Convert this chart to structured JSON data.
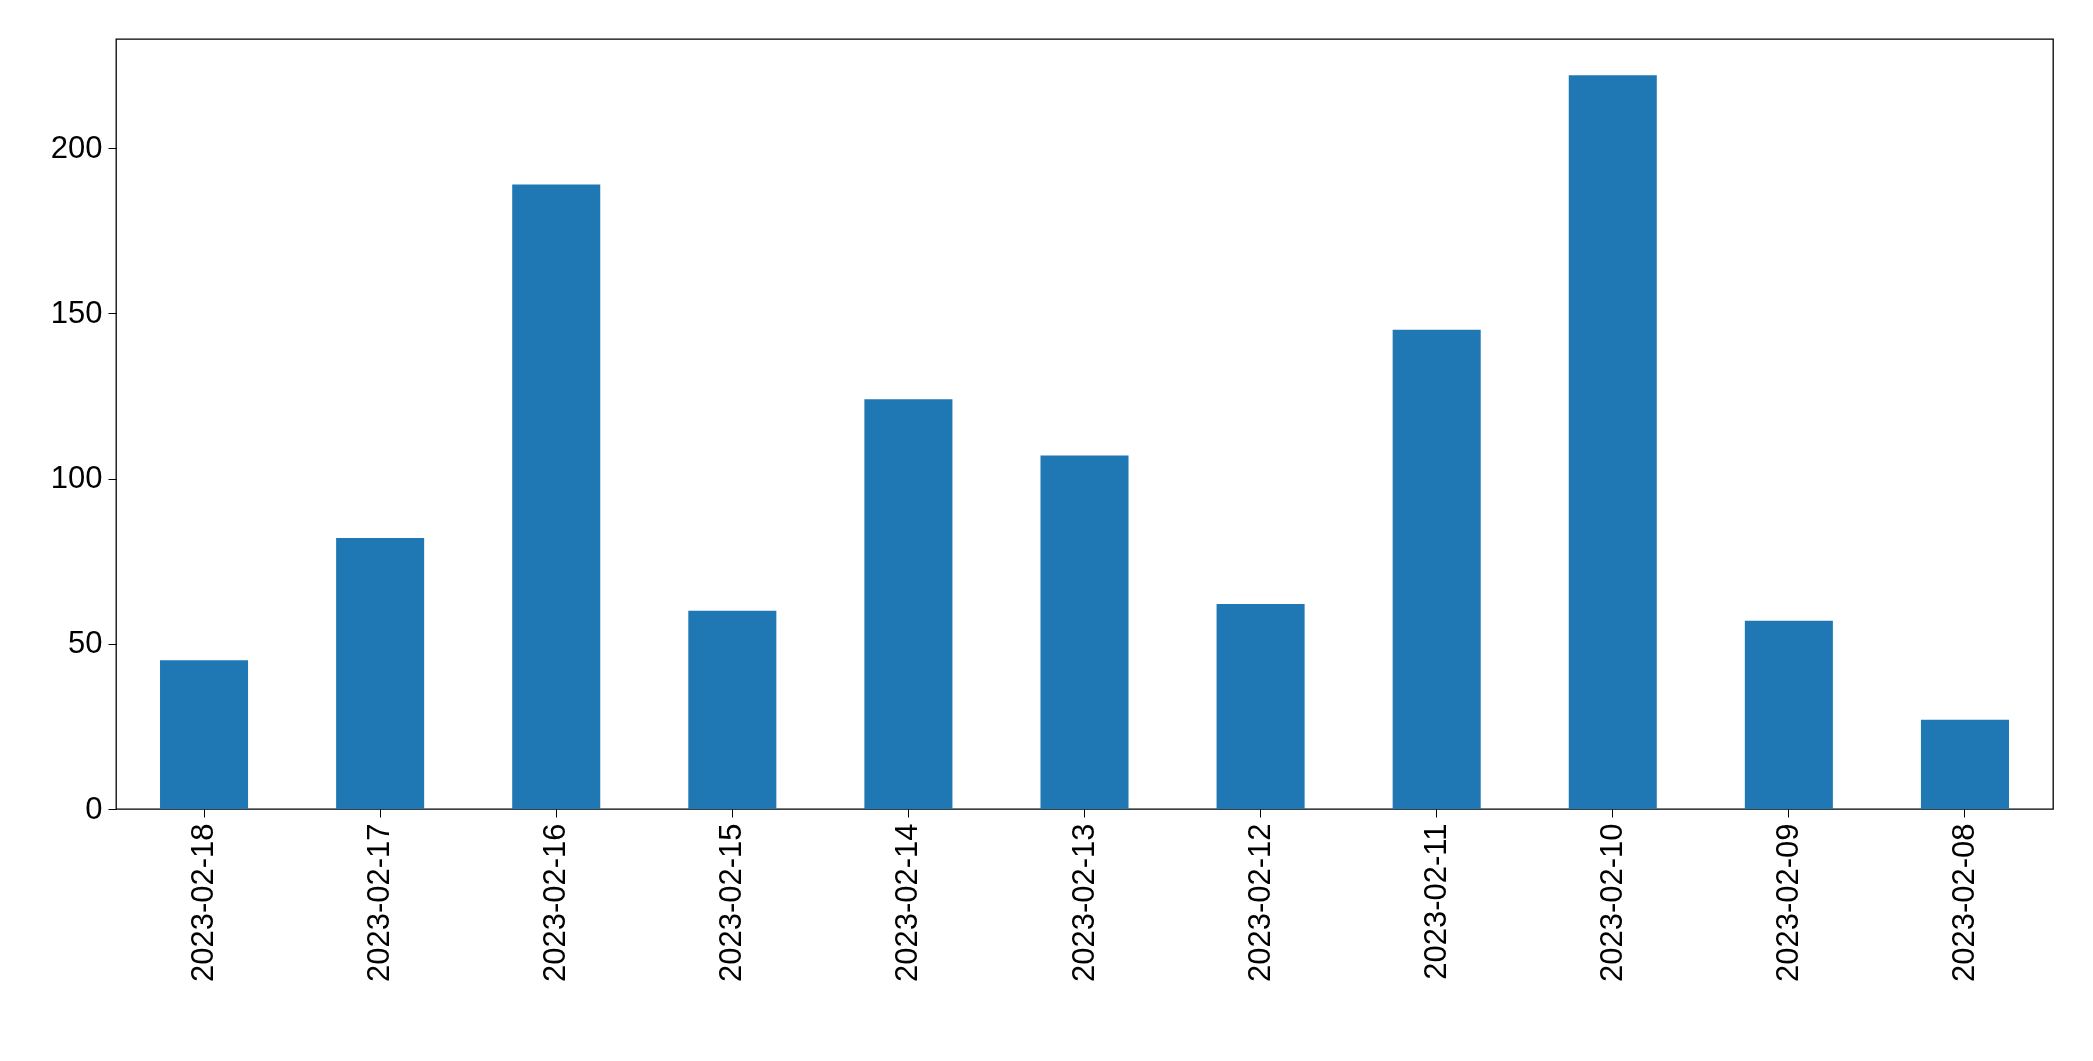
{
  "chart_data": {
    "type": "bar",
    "categories": [
      "2023-02-18",
      "2023-02-17",
      "2023-02-16",
      "2023-02-15",
      "2023-02-14",
      "2023-02-13",
      "2023-02-12",
      "2023-02-11",
      "2023-02-10",
      "2023-02-09",
      "2023-02-08"
    ],
    "values": [
      45,
      82,
      189,
      60,
      124,
      107,
      62,
      145,
      222,
      57,
      27
    ],
    "color": "#1f77b4",
    "ylim": [
      0,
      233
    ],
    "yticks": [
      0,
      50,
      100,
      150,
      200
    ],
    "grid": false
  }
}
